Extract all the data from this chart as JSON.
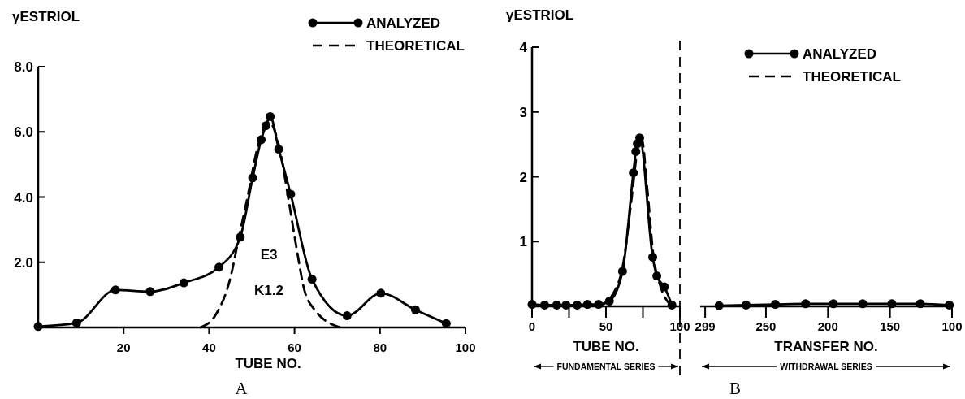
{
  "chart_data": [
    {
      "type": "line",
      "ylabel": "γESTRIOL",
      "xlabel": "TUBE NO.",
      "xlim": [
        0,
        100
      ],
      "ylim": [
        0,
        8
      ],
      "xticks": [
        20,
        40,
        60,
        80,
        100
      ],
      "yticks": [
        {
          "value": 2,
          "label": "2.0"
        },
        {
          "value": 4,
          "label": "4.0"
        },
        {
          "value": 6,
          "label": "6.0"
        },
        {
          "value": 8,
          "label": "8.0"
        }
      ],
      "legend": "top right",
      "grid": false,
      "series": [
        {
          "name": "ANALYZED",
          "color": "#000000",
          "marker": "circle",
          "line_style": "solid",
          "x": [
            0,
            9,
            18.1,
            26.2,
            34.1,
            42.3,
            47.3,
            50.2,
            52.2,
            53.3,
            54.3,
            56.3,
            59.1,
            64.1,
            72.3,
            80.2,
            88.3,
            95.5
          ],
          "values": [
            0.03,
            0.14,
            1.15,
            1.1,
            1.37,
            1.85,
            2.77,
            4.59,
            5.76,
            6.19,
            6.47,
            5.47,
            4.09,
            1.48,
            0.36,
            1.05,
            0.54,
            0.12
          ]
        },
        {
          "name": "THEORETICAL",
          "color": "#000000",
          "marker": "none",
          "line_style": "dashed",
          "x": [
            38,
            41.5,
            44.8,
            47,
            49,
            51.5,
            54,
            56.5,
            58.5,
            60.4,
            62.3,
            64.8,
            70.7
          ],
          "values": [
            0,
            0.38,
            1.43,
            2.77,
            4.0,
            5.6,
            6.3,
            5.5,
            4.0,
            2.49,
            1.15,
            0.53,
            0
          ]
        }
      ],
      "annotations": [
        "E3",
        "K1.2",
        "A"
      ]
    },
    {
      "type": "line",
      "ylabel": "γESTRIOL",
      "xlabel": "TUBE NO.",
      "xlim": [
        0,
        100
      ],
      "ylim": [
        0,
        4
      ],
      "xticks": [
        0,
        {
          "value": 25,
          "label": null
        },
        50,
        {
          "value": 75,
          "label": null
        },
        100
      ],
      "yticks": [
        1,
        2,
        3,
        4
      ],
      "legend": "top right",
      "grid": false,
      "series": [
        {
          "name": "ANALYZED",
          "color": "#000000",
          "marker": "circle",
          "line_style": "solid",
          "x": [
            0,
            8.5,
            16.7,
            23,
            30.5,
            37.5,
            45,
            52.3,
            61.2,
            68.5,
            70.2,
            71.2,
            72.8,
            81.6,
            84.4,
            89.5,
            94.6
          ],
          "values": [
            0.03,
            0.02,
            0.02,
            0.02,
            0.02,
            0.03,
            0.03,
            0.08,
            0.54,
            2.06,
            2.39,
            2.51,
            2.6,
            0.76,
            0.47,
            0.3,
            0.02
          ]
        },
        {
          "name": "THEORETICAL",
          "color": "#000000",
          "marker": "none",
          "line_style": "dashed",
          "x": [
            45,
            55,
            62,
            67,
            72,
            74,
            78,
            82,
            87,
            95
          ],
          "values": [
            0,
            0.2,
            0.7,
            1.6,
            2.5,
            2.6,
            1.8,
            0.8,
            0.3,
            0
          ]
        }
      ],
      "ref_lines": [
        {
          "axis": "x",
          "value": 100,
          "line_style": "dashed"
        }
      ],
      "annotations": [
        "FUNDAMENTAL SERIES",
        "B"
      ]
    },
    {
      "type": "line",
      "xlabel": "TRANSFER NO.",
      "xlim": [
        303,
        100
      ],
      "ylim": [
        0,
        4
      ],
      "xticks": [
        299,
        250,
        200,
        150,
        100
      ],
      "tick_labels": "x",
      "grid": false,
      "series": [
        {
          "color": "#000000",
          "marker": "circle",
          "line_style": "solid",
          "x": [
            287.8,
            266,
            242.4,
            218,
            195.6,
            172,
            148.5,
            125.5,
            102.2
          ],
          "values": [
            0.01,
            0.02,
            0.03,
            0.04,
            0.04,
            0.04,
            0.04,
            0.04,
            0.02
          ]
        }
      ],
      "annotations": [
        "WITHDRAWAL SERIES"
      ]
    }
  ]
}
